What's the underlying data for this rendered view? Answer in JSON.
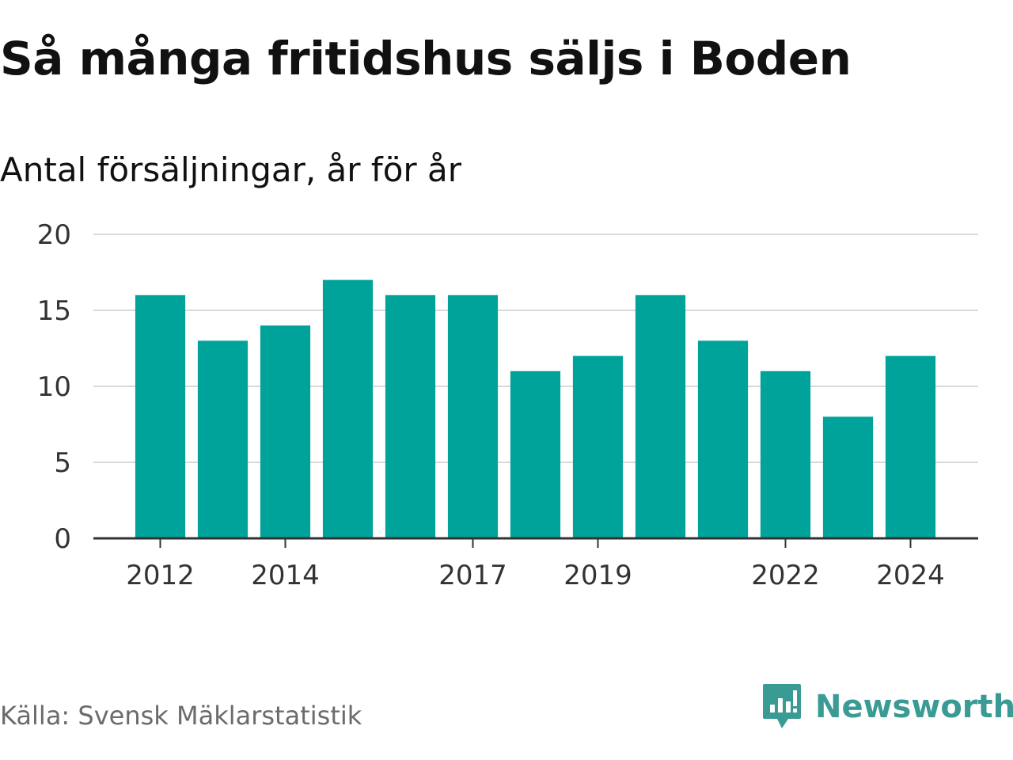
{
  "title": "Så många fritidshus säljs i Boden",
  "subtitle": "Antal försäljningar, år för år",
  "source": "Källa: Svensk Mäklarstatistik",
  "logo": {
    "name": "Newsworthy",
    "icon": "newsworthy-logo-icon"
  },
  "colors": {
    "bar": "#00a39a",
    "grid": "#d9d9d9",
    "axis": "#333333",
    "logo": "#3a9a94"
  },
  "chart_data": {
    "type": "bar",
    "categories": [
      "2012",
      "2013",
      "2014",
      "2015",
      "2016",
      "2017",
      "2018",
      "2019",
      "2020",
      "2021",
      "2022",
      "2023",
      "2024"
    ],
    "values": [
      16,
      13,
      14,
      17,
      16,
      16,
      11,
      12,
      16,
      13,
      11,
      8,
      12
    ],
    "x_tick_labels": [
      "2012",
      "2014",
      "2017",
      "2019",
      "2022",
      "2024"
    ],
    "y_ticks": [
      0,
      5,
      10,
      15,
      20
    ],
    "ylim": [
      0,
      20
    ],
    "xlabel": "",
    "ylabel": "",
    "grid": true,
    "legend": "none"
  }
}
